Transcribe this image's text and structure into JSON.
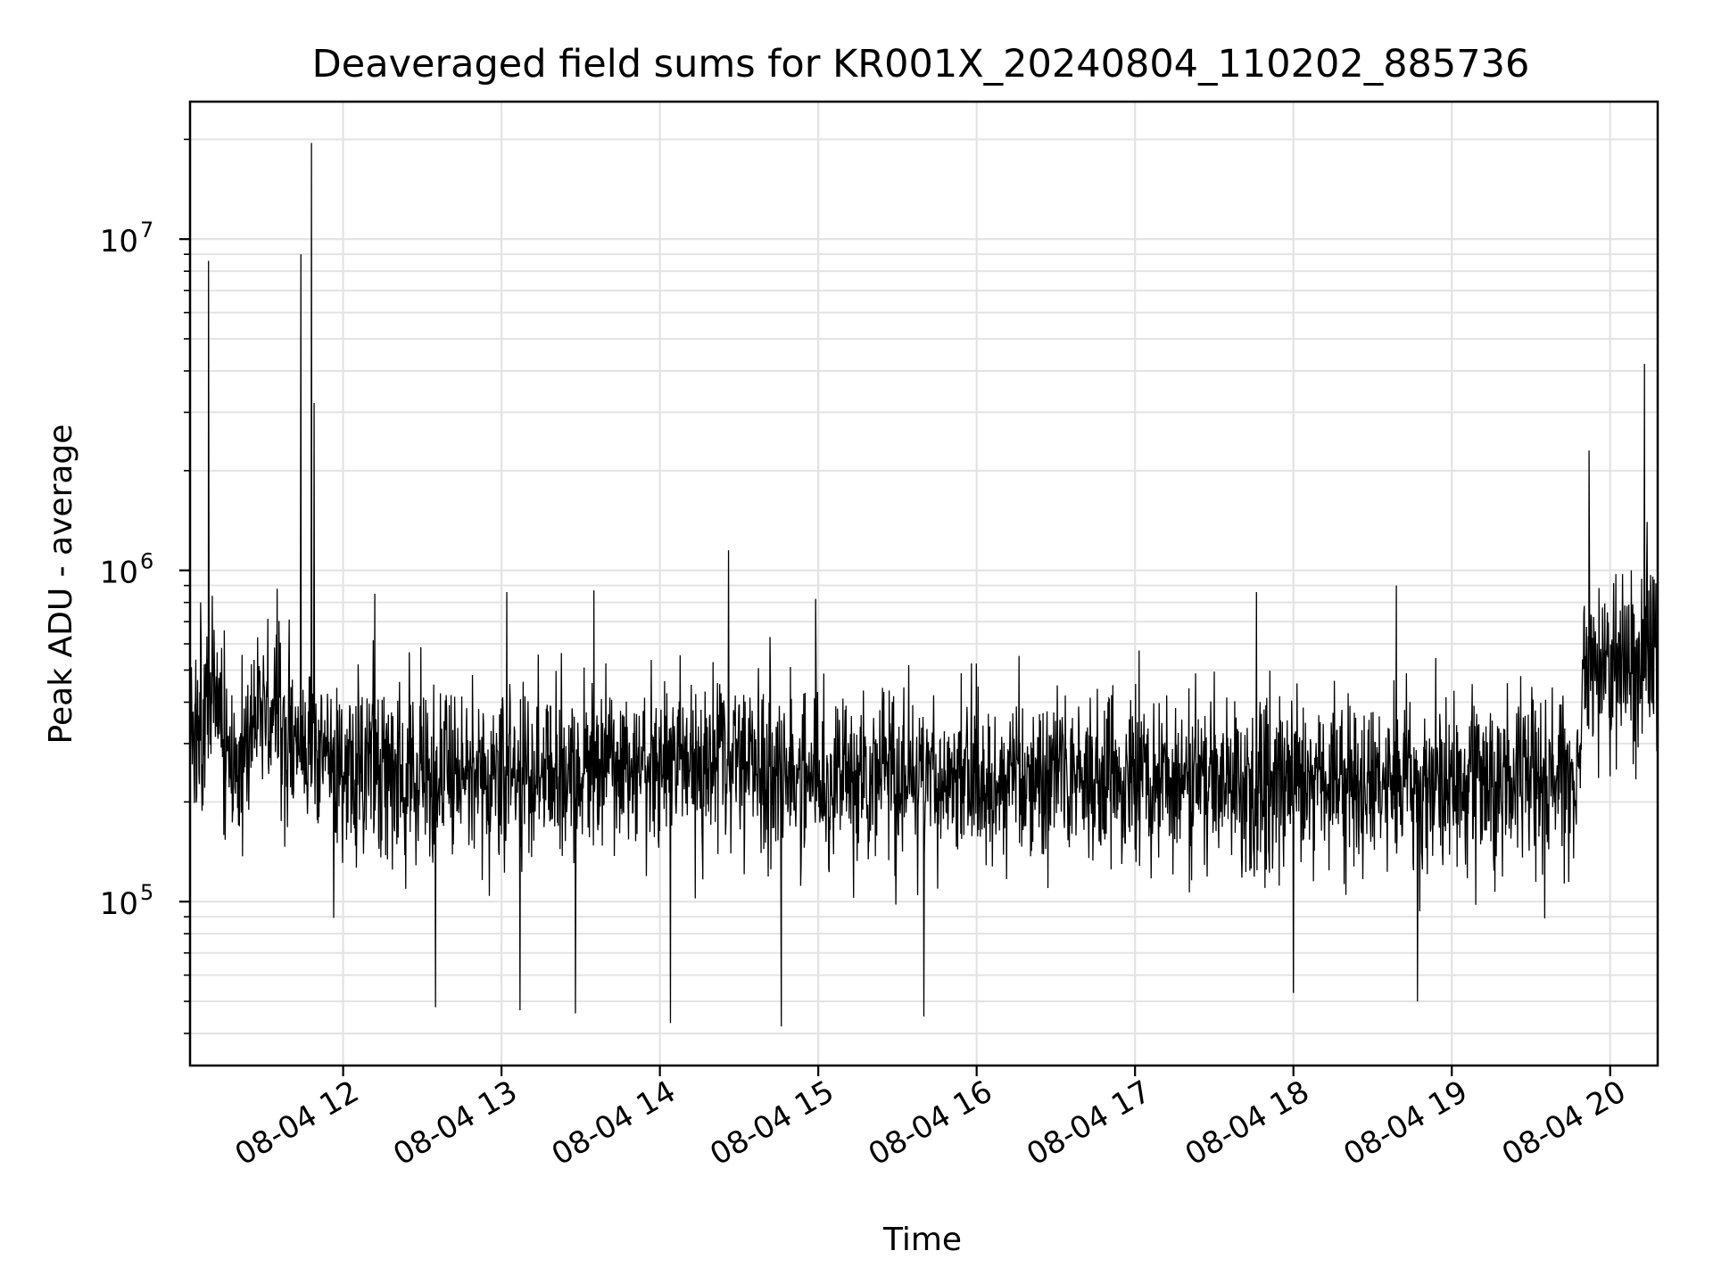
{
  "chart_data": {
    "type": "line",
    "title": "Deaveraged field sums for KR001X_20240804_110202_885736",
    "xlabel": "Time",
    "ylabel": "Peak ADU - average",
    "yscale": "log",
    "xlim": [
      "2024-08-04 11:02",
      "2024-08-04 20:18"
    ],
    "ylim": [
      32000,
      26000000
    ],
    "grid": true,
    "line_color": "#000000",
    "x_ticks": [
      {
        "time": "2024-08-04 12:00",
        "label": "08-04 12"
      },
      {
        "time": "2024-08-04 13:00",
        "label": "08-04 13"
      },
      {
        "time": "2024-08-04 14:00",
        "label": "08-04 14"
      },
      {
        "time": "2024-08-04 15:00",
        "label": "08-04 15"
      },
      {
        "time": "2024-08-04 16:00",
        "label": "08-04 16"
      },
      {
        "time": "2024-08-04 17:00",
        "label": "08-04 17"
      },
      {
        "time": "2024-08-04 18:00",
        "label": "08-04 18"
      },
      {
        "time": "2024-08-04 19:00",
        "label": "08-04 19"
      },
      {
        "time": "2024-08-04 20:00",
        "label": "08-04 20"
      }
    ],
    "y_ticks": [
      {
        "value": 100000,
        "base": "10",
        "exp": "5"
      },
      {
        "value": 1000000,
        "base": "10",
        "exp": "6"
      },
      {
        "value": 10000000,
        "base": "10",
        "exp": "7"
      }
    ],
    "series": [
      {
        "baseline": [
          [
            "2024-08-04 11:02",
            280000
          ],
          [
            "2024-08-04 11:10",
            430000
          ],
          [
            "2024-08-04 11:20",
            250000
          ],
          [
            "2024-08-04 11:30",
            420000
          ],
          [
            "2024-08-04 11:45",
            280000
          ],
          [
            "2024-08-04 12:00",
            250000
          ],
          [
            "2024-08-04 12:30",
            240000
          ],
          [
            "2024-08-04 13:00",
            250000
          ],
          [
            "2024-08-04 13:30",
            250000
          ],
          [
            "2024-08-04 14:00",
            260000
          ],
          [
            "2024-08-04 14:30",
            280000
          ],
          [
            "2024-08-04 15:00",
            230000
          ],
          [
            "2024-08-04 15:30",
            240000
          ],
          [
            "2024-08-04 16:00",
            250000
          ],
          [
            "2024-08-04 17:00",
            240000
          ],
          [
            "2024-08-04 18:00",
            230000
          ],
          [
            "2024-08-04 19:00",
            230000
          ],
          [
            "2024-08-04 19:48",
            240000
          ],
          [
            "2024-08-04 19:50",
            550000
          ],
          [
            "2024-08-04 20:18",
            550000
          ]
        ],
        "spikes": [
          [
            "2024-08-04 11:09",
            8600000
          ],
          [
            "2024-08-04 11:06",
            800000
          ],
          [
            "2024-08-04 11:44",
            9000000
          ],
          [
            "2024-08-04 11:48",
            19500000
          ],
          [
            "2024-08-04 11:49",
            3200000
          ],
          [
            "2024-08-04 11:35",
            880000
          ],
          [
            "2024-08-04 12:12",
            850000
          ],
          [
            "2024-08-04 13:02",
            860000
          ],
          [
            "2024-08-04 13:35",
            870000
          ],
          [
            "2024-08-04 14:26",
            1150000
          ],
          [
            "2024-08-04 14:59",
            820000
          ],
          [
            "2024-08-04 17:46",
            860000
          ],
          [
            "2024-08-04 18:39",
            900000
          ],
          [
            "2024-08-04 19:52",
            2300000
          ],
          [
            "2024-08-04 20:13",
            4200000
          ],
          [
            "2024-08-04 20:14",
            1400000
          ],
          [
            "2024-08-04 20:08",
            1000000
          ]
        ],
        "dips": [
          [
            "2024-08-04 13:28",
            46000
          ],
          [
            "2024-08-04 14:04",
            43000
          ],
          [
            "2024-08-04 14:46",
            42000
          ],
          [
            "2024-08-04 15:40",
            45000
          ],
          [
            "2024-08-04 12:35",
            48000
          ],
          [
            "2024-08-04 13:07",
            47000
          ],
          [
            "2024-08-04 18:00",
            53000
          ],
          [
            "2024-08-04 18:47",
            50000
          ]
        ]
      }
    ]
  }
}
